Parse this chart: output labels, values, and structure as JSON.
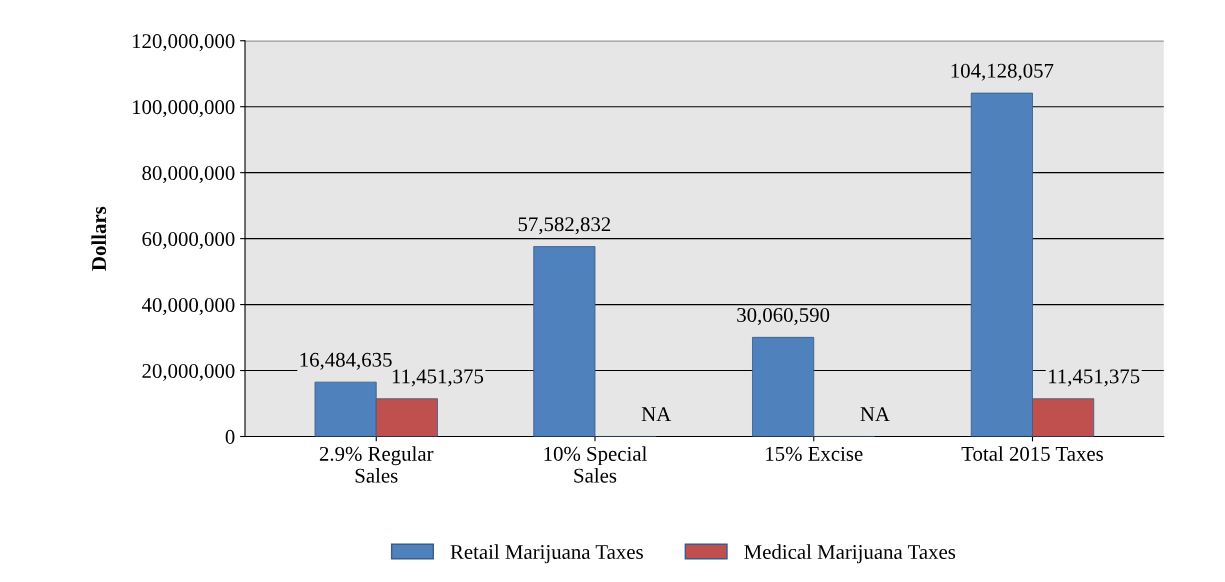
{
  "chart_data": {
    "type": "bar",
    "ylabel": "Dollars",
    "categories": [
      "2.9% Regular\nSales",
      "10% Special\nSales",
      "15% Excise",
      "Total 2015 Taxes"
    ],
    "series": [
      {
        "name": "Retail Marijuana Taxes",
        "color": "#4f81bd",
        "values": [
          16484635,
          57582832,
          30060590,
          104128057
        ],
        "value_labels": [
          "16,484,635",
          "57,582,832",
          "30,060,590",
          "104,128,057"
        ]
      },
      {
        "name": "Medical Marijuana Taxes",
        "color": "#c0504d",
        "values": [
          11451375,
          null,
          null,
          11451375
        ],
        "value_labels": [
          "11,451,375",
          "NA",
          "NA",
          "11,451,375"
        ]
      }
    ],
    "ylim": [
      0,
      120000000
    ],
    "yticks": [
      {
        "value": 0,
        "label": "0"
      },
      {
        "value": 20000000,
        "label": "20,000,000"
      },
      {
        "value": 40000000,
        "label": "40,000,000"
      },
      {
        "value": 60000000,
        "label": "60,000,000"
      },
      {
        "value": 80000000,
        "label": "80,000,000"
      },
      {
        "value": 100000000,
        "label": "100,000,000"
      },
      {
        "value": 120000000,
        "label": "120,000,000"
      }
    ],
    "grid": "y",
    "legend": "bottom"
  }
}
